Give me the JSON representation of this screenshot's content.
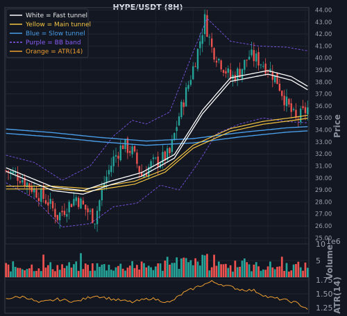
{
  "chart_data": [
    {
      "type": "candlestick",
      "title": "HYPE/USDT (8H)",
      "ylabel": "Price",
      "ylim": [
        24.5,
        44.2
      ],
      "y_ticks": [
        "25.00",
        "26.00",
        "27.00",
        "28.00",
        "29.00",
        "30.00",
        "31.00",
        "32.00",
        "33.00",
        "34.00",
        "35.00",
        "36.00",
        "37.00",
        "38.00",
        "39.00",
        "40.00",
        "41.00",
        "42.00",
        "43.00",
        "44.00"
      ],
      "grid": true,
      "legend": {
        "placement": "top-left",
        "entries": [
          {
            "label": "White = Fast tunnel",
            "color": "#ffffff",
            "style": "solid"
          },
          {
            "label": "Yellow = Main tunnel",
            "color": "#f5c542",
            "style": "solid"
          },
          {
            "label": "Blue = Slow tunnel",
            "color": "#4a9ee8",
            "style": "solid"
          },
          {
            "label": "Purple = BB band",
            "color": "#8a5cf6",
            "style": "dashed"
          },
          {
            "label": "Orange = ATR(14)",
            "color": "#f0a030",
            "style": "solid"
          }
        ]
      },
      "colors": {
        "up": "#26a69a",
        "down": "#ef5350"
      },
      "candle_count": 130,
      "price_path": [
        [
          0,
          30.6
        ],
        [
          6,
          30.1
        ],
        [
          12,
          29.0
        ],
        [
          18,
          28.0
        ],
        [
          22,
          26.8
        ],
        [
          26,
          27.6
        ],
        [
          30,
          28.4
        ],
        [
          34,
          27.4
        ],
        [
          38,
          26.6
        ],
        [
          42,
          29.6
        ],
        [
          46,
          31.6
        ],
        [
          50,
          32.8
        ],
        [
          54,
          32.2
        ],
        [
          58,
          30.2
        ],
        [
          62,
          31.1
        ],
        [
          66,
          31.5
        ],
        [
          70,
          32.0
        ],
        [
          74,
          35.2
        ],
        [
          78,
          37.8
        ],
        [
          82,
          40.6
        ],
        [
          85,
          43.2
        ],
        [
          88,
          40.8
        ],
        [
          92,
          39.6
        ],
        [
          96,
          38.3
        ],
        [
          100,
          38.9
        ],
        [
          104,
          40.2
        ],
        [
          108,
          39.8
        ],
        [
          112,
          39.2
        ],
        [
          116,
          38.1
        ],
        [
          120,
          36.2
        ],
        [
          124,
          34.8
        ],
        [
          129,
          35.8
        ]
      ],
      "tunnels": {
        "fast": [
          [
            0,
            30.7
          ],
          [
            20,
            29.1
          ],
          [
            33,
            28.8
          ],
          [
            45,
            29.6
          ],
          [
            58,
            30.3
          ],
          [
            72,
            31.8
          ],
          [
            84,
            35.5
          ],
          [
            96,
            38.2
          ],
          [
            112,
            38.8
          ],
          [
            122,
            38.3
          ],
          [
            129,
            37.5
          ]
        ],
        "main": [
          [
            0,
            29.2
          ],
          [
            20,
            29.2
          ],
          [
            35,
            29.0
          ],
          [
            55,
            29.6
          ],
          [
            68,
            30.6
          ],
          [
            80,
            32.6
          ],
          [
            96,
            34.0
          ],
          [
            110,
            34.6
          ],
          [
            122,
            34.9
          ],
          [
            129,
            35.1
          ]
        ],
        "slow": [
          [
            0,
            33.9
          ],
          [
            20,
            33.6
          ],
          [
            40,
            33.2
          ],
          [
            60,
            32.9
          ],
          [
            80,
            33.1
          ],
          [
            100,
            33.6
          ],
          [
            120,
            34.0
          ],
          [
            129,
            34.1
          ]
        ],
        "bb_upper": [
          [
            0,
            31.9
          ],
          [
            12,
            31.3
          ],
          [
            24,
            29.8
          ],
          [
            36,
            31.0
          ],
          [
            46,
            33.5
          ],
          [
            54,
            34.8
          ],
          [
            60,
            34.5
          ],
          [
            70,
            35.5
          ],
          [
            80,
            40.5
          ],
          [
            86,
            43.3
          ],
          [
            96,
            41.4
          ],
          [
            108,
            41.0
          ],
          [
            120,
            40.9
          ],
          [
            129,
            40.6
          ]
        ],
        "bb_lower": [
          [
            0,
            29.6
          ],
          [
            12,
            28.3
          ],
          [
            24,
            25.9
          ],
          [
            36,
            26.2
          ],
          [
            46,
            27.6
          ],
          [
            56,
            27.9
          ],
          [
            66,
            29.4
          ],
          [
            74,
            29.0
          ],
          [
            82,
            31.2
          ],
          [
            90,
            33.7
          ],
          [
            100,
            34.5
          ],
          [
            110,
            35.0
          ],
          [
            120,
            34.7
          ],
          [
            129,
            34.6
          ]
        ]
      }
    },
    {
      "type": "bar",
      "ylabel": "Volume",
      "scale_note": "1e6",
      "ylim": [
        0,
        10
      ],
      "y_ticks": [
        "5",
        "10"
      ],
      "grid": true,
      "bar_count": 130
    },
    {
      "type": "line",
      "ylabel": "ATR(14)",
      "ylim": [
        1.15,
        1.8
      ],
      "y_ticks": [
        "1.25",
        "1.50",
        "1.75"
      ],
      "grid": true,
      "color": "#f0a030",
      "points": [
        [
          0,
          1.42
        ],
        [
          8,
          1.45
        ],
        [
          14,
          1.34
        ],
        [
          22,
          1.4
        ],
        [
          30,
          1.36
        ],
        [
          38,
          1.47
        ],
        [
          46,
          1.4
        ],
        [
          54,
          1.35
        ],
        [
          62,
          1.42
        ],
        [
          70,
          1.34
        ],
        [
          76,
          1.52
        ],
        [
          82,
          1.63
        ],
        [
          88,
          1.72
        ],
        [
          94,
          1.65
        ],
        [
          100,
          1.58
        ],
        [
          106,
          1.56
        ],
        [
          112,
          1.44
        ],
        [
          118,
          1.4
        ],
        [
          124,
          1.34
        ],
        [
          129,
          1.23
        ]
      ]
    }
  ]
}
